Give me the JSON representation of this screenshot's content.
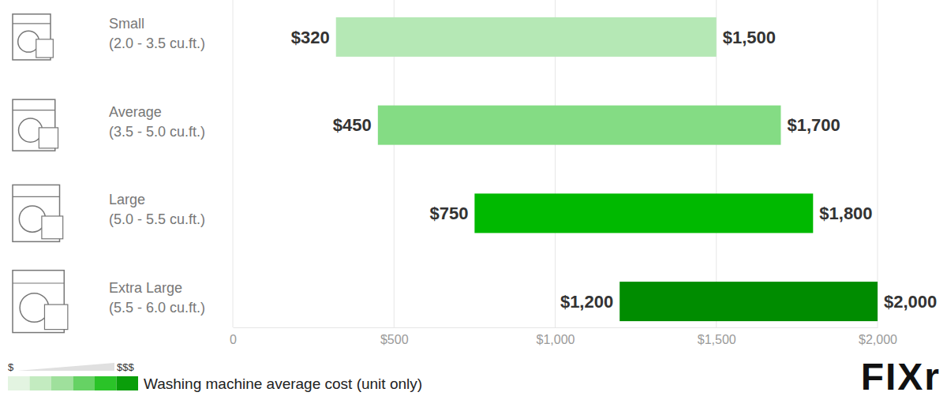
{
  "chart_data": {
    "type": "bar",
    "orientation": "horizontal",
    "categories": [
      "Small",
      "Average",
      "Large",
      "Extra Large"
    ],
    "category_subtitles": [
      "(2.0 - 3.5 cu.ft.)",
      "(3.5 - 5.0 cu.ft.)",
      "(5.0 - 5.5 cu.ft.)",
      "(5.5 - 6.0 cu.ft.)"
    ],
    "series": [
      {
        "name": "Washing machine average cost (unit only)",
        "low": [
          320,
          450,
          750,
          1200
        ],
        "low_labels": [
          "$320",
          "$450",
          "$750",
          "$1,200"
        ],
        "values": [
          1500,
          1700,
          1800,
          2000
        ],
        "value_labels": [
          "$1,500",
          "$1,700",
          "$1,800",
          "$2,000"
        ],
        "colors": [
          "#b5e8b5",
          "#84dc84",
          "#00b900",
          "#008c00"
        ]
      }
    ],
    "xlim": [
      0,
      2000
    ],
    "xticks": [
      0,
      {
        "value": 500,
        "label": "$500"
      },
      {
        "value": 1000,
        "label": "$1,000"
      },
      {
        "value": 1500,
        "label": "$1,500"
      },
      {
        "value": 2000,
        "label": "$2,000"
      }
    ],
    "grid": true,
    "data_labels": true,
    "legend": "bottom-left",
    "legend_scale_labels": [
      "$",
      "$$$"
    ],
    "annotations": [
      "FIXr"
    ]
  }
}
